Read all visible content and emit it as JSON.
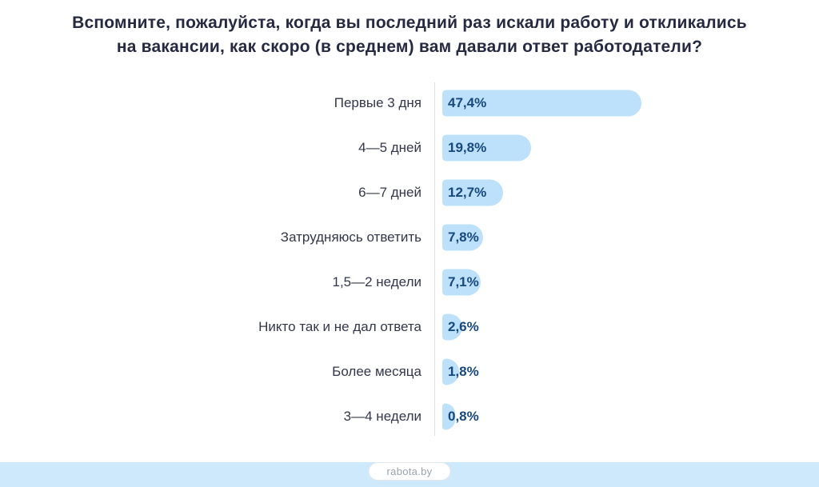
{
  "chart_data": {
    "type": "bar",
    "orientation": "horizontal",
    "title": "Вспомните, пожалуйста, когда вы последний раз искали работу и откликались на вакансии, как скоро (в среднем) вам давали ответ работодатели?",
    "title_lines": [
      "Вспомните, пожалуйста, когда вы последний раз искали работу и откликались",
      "на вакансии, как скоро (в среднем) вам давали ответ работодатели?"
    ],
    "categories": [
      "Первые 3 дня",
      "4—5 дней",
      "6—7 дней",
      "Затрудняюсь ответить",
      "1,5—2 недели",
      "Никто так и не дал ответа",
      "Более месяца",
      "3—4 недели"
    ],
    "values": [
      47.4,
      19.8,
      12.7,
      7.8,
      7.1,
      2.6,
      1.8,
      0.8
    ],
    "value_labels": [
      "47,4%",
      "19,8%",
      "12,7%",
      "7,8%",
      "7,1%",
      "2,6%",
      "1,8%",
      "0,8%"
    ],
    "xlim": [
      0,
      50
    ],
    "bar_color": "#bde0fb",
    "value_label_color": "#17497f",
    "grid": false,
    "legend": false
  },
  "footer": {
    "brand": "rabota.by",
    "strip_color": "#cfe9fc"
  }
}
